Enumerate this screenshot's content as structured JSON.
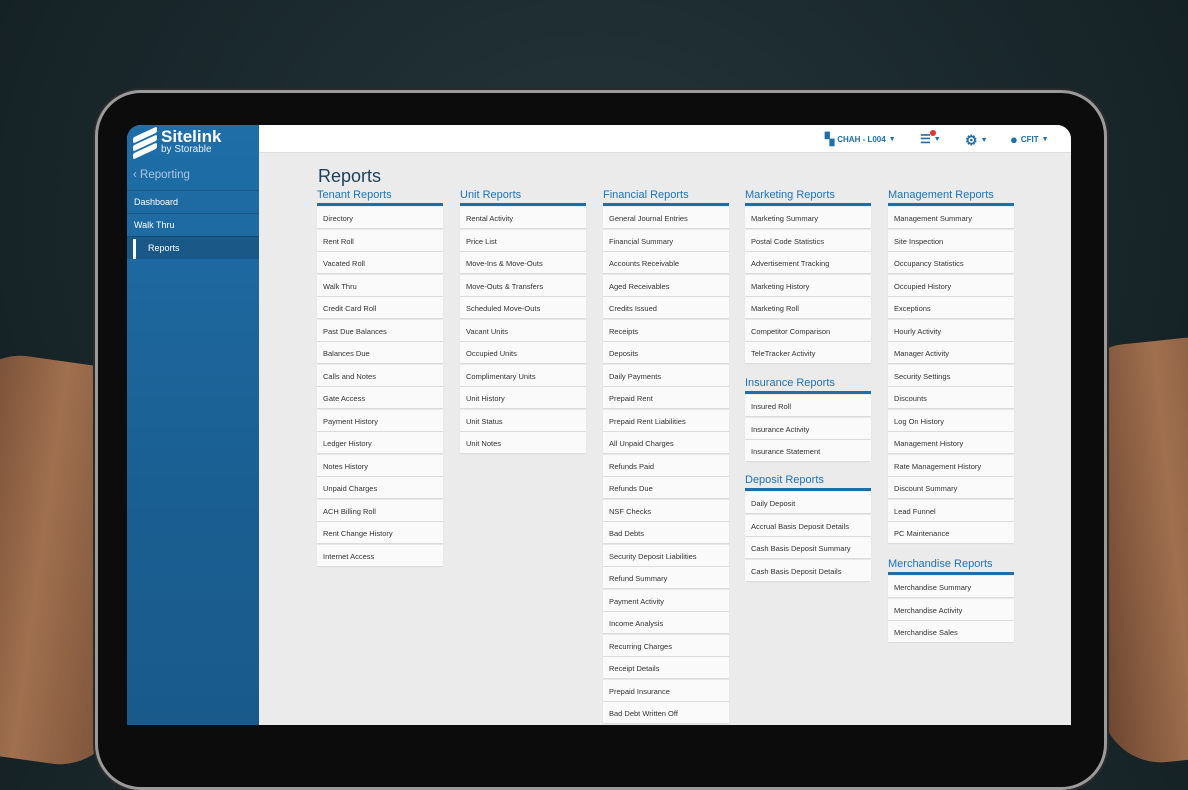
{
  "brand": {
    "name": "Sitelink",
    "sub": "by Storable"
  },
  "sidebar": {
    "back": "Reporting",
    "items": [
      {
        "label": "Dashboard"
      },
      {
        "label": "Walk Thru"
      },
      {
        "label": "Reports"
      }
    ]
  },
  "header": {
    "location": "CHAH - L004",
    "user": "CFIT",
    "notification_color": "#e53030"
  },
  "page_title": "Reports",
  "columns": [
    [
      {
        "title": "Tenant Reports",
        "items": [
          "Directory",
          "Rent Roll",
          "Vacated Roll",
          "Walk Thru",
          "Credit Card Roll",
          "Past Due Balances",
          "Balances Due",
          "Calls and Notes",
          "Gate Access",
          "Payment History",
          "Ledger History",
          "Notes History",
          "Unpaid Charges",
          "ACH Billing Roll",
          "Rent Change History",
          "Internet Access"
        ]
      }
    ],
    [
      {
        "title": "Unit Reports",
        "items": [
          "Rental Activity",
          "Price List",
          "Move-Ins & Move-Outs",
          "Move-Outs & Transfers",
          "Scheduled Move-Outs",
          "Vacant Units",
          "Occupied Units",
          "Complimentary Units",
          "Unit History",
          "Unit Status",
          "Unit Notes"
        ]
      }
    ],
    [
      {
        "title": "Financial Reports",
        "items": [
          "General Journal Entries",
          "Financial Summary",
          "Accounts Receivable",
          "Aged Receivables",
          "Credits Issued",
          "Receipts",
          "Deposits",
          "Daily Payments",
          "Prepaid Rent",
          "Prepaid Rent Liabilities",
          "All Unpaid Charges",
          "Refunds Paid",
          "Refunds Due",
          "NSF Checks",
          "Bad Debts",
          "Security Deposit Liabilities",
          "Refund Summary",
          "Payment Activity",
          "Income Analysis",
          "Recurring Charges",
          "Receipt Details",
          "Prepaid Insurance",
          "Bad Debt Written Off"
        ]
      }
    ],
    [
      {
        "title": "Marketing Reports",
        "items": [
          "Marketing Summary",
          "Postal Code Statistics",
          "Advertisement Tracking",
          "Marketing History",
          "Marketing Roll",
          "Competitor Comparison",
          "TeleTracker Activity"
        ]
      },
      {
        "title": "Insurance Reports",
        "items": [
          "Insured Roll",
          "Insurance Activity",
          "Insurance Statement"
        ]
      },
      {
        "title": "Deposit Reports",
        "items": [
          "Daily Deposit",
          "Accrual Basis Deposit Details",
          "Cash Basis Deposit Summary",
          "Cash Basis Deposit Details"
        ]
      }
    ],
    [
      {
        "title": "Management Reports",
        "items": [
          "Management Summary",
          "Site Inspection",
          "Occupancy Statistics",
          "Occupied History",
          "Exceptions",
          "Hourly Activity",
          "Manager Activity",
          "Security Settings",
          "Discounts",
          "Log On History",
          "Management History",
          "Rate Management History",
          "Discount Summary",
          "Lead Funnel",
          "PC Maintenance"
        ]
      },
      {
        "title": "Merchandise Reports",
        "items": [
          "Merchandise Summary",
          "Merchandise Activity",
          "Merchandise Sales"
        ]
      }
    ]
  ],
  "accent": "#1f6ea8"
}
